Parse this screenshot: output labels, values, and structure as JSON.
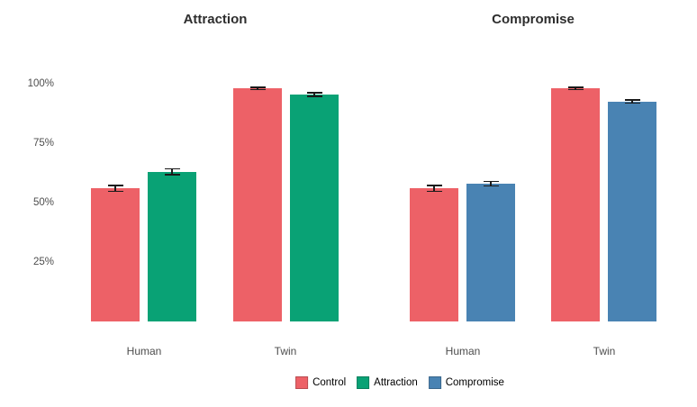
{
  "chart_data": {
    "type": "bar",
    "title": "",
    "layout": "two faceted panels side by side, shared y axis, legend bottom, no gridlines, white background",
    "ylim": [
      0,
      100
    ],
    "yticks": [
      {
        "label": "100%",
        "value": 100
      },
      {
        "label": "75%",
        "value": 75
      },
      {
        "label": "50%",
        "value": 50
      },
      {
        "label": "25%",
        "value": 25
      }
    ],
    "grid": false,
    "legend_position": "bottom",
    "panels": [
      {
        "title": "Attraction",
        "categories": [
          "Human",
          "Twin"
        ],
        "series": [
          {
            "name": "Control",
            "color": "#ed6167",
            "values": [
              56,
              98
            ],
            "errors": [
              1.5,
              0.7
            ]
          },
          {
            "name": "Attraction",
            "color": "#09a275",
            "values": [
              63,
              95.5
            ],
            "errors": [
              1.5,
              1.0
            ]
          }
        ]
      },
      {
        "title": "Compromise",
        "categories": [
          "Human",
          "Twin"
        ],
        "series": [
          {
            "name": "Control",
            "color": "#ed6167",
            "values": [
              56,
              98
            ],
            "errors": [
              1.5,
              0.7
            ]
          },
          {
            "name": "Compromise",
            "color": "#4983b3",
            "values": [
              58,
              92.5
            ],
            "errors": [
              1.2,
              1.0
            ]
          }
        ]
      }
    ],
    "legend": [
      {
        "label": "Control",
        "color": "#ed6167"
      },
      {
        "label": "Attraction",
        "color": "#09a275"
      },
      {
        "label": "Compromise",
        "color": "#4983b3"
      }
    ],
    "colors": {
      "control": "#ed6167",
      "attraction": "#09a275",
      "compromise": "#4983b3",
      "title_text": "#2e2e2e",
      "axis_text": "#4d4d4d",
      "error_bar": "#1a1a1a"
    }
  }
}
